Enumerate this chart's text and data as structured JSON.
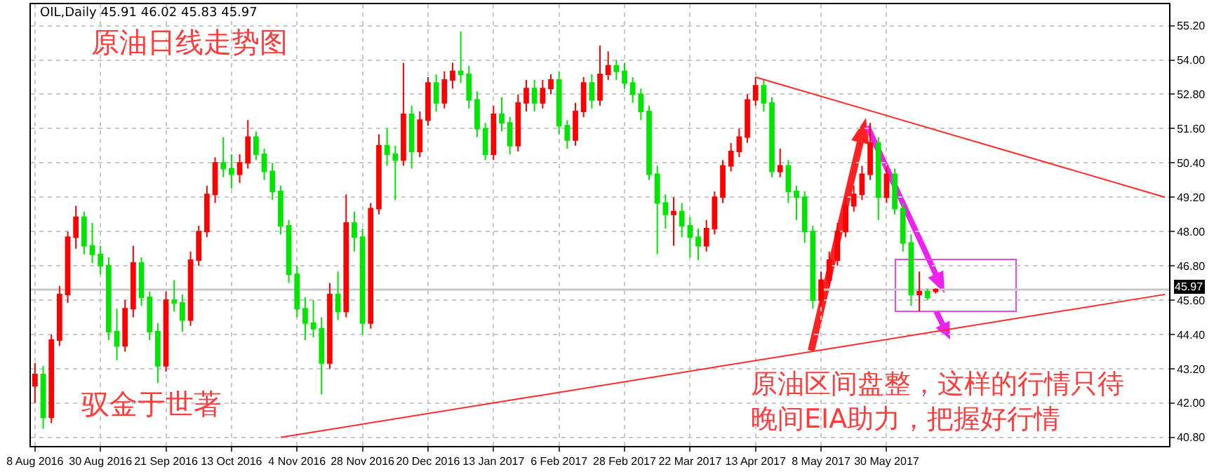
{
  "chart_data": {
    "type": "candlestick",
    "title": "OIL,Daily 45.91 46.02 45.83 45.97",
    "categories": [
      "8 Aug 2016",
      null,
      null,
      null,
      null,
      null,
      null,
      null,
      "30 Aug 2016",
      null,
      null,
      null,
      null,
      null,
      null,
      null,
      "21 Sep 2016",
      null,
      null,
      null,
      null,
      null,
      null,
      null,
      "13 Oct 2016",
      null,
      null,
      null,
      null,
      null,
      null,
      null,
      "4 Nov 2016",
      null,
      null,
      null,
      null,
      null,
      null,
      null,
      "28 Nov 2016",
      null,
      null,
      null,
      null,
      null,
      null,
      null,
      "20 Dec 2016",
      null,
      null,
      null,
      null,
      null,
      null,
      null,
      "13 Jan 2017",
      null,
      null,
      null,
      null,
      null,
      null,
      null,
      "6 Feb 2017",
      null,
      null,
      null,
      null,
      null,
      null,
      null,
      "28 Feb 2017",
      null,
      null,
      null,
      null,
      null,
      null,
      null,
      "22 Mar 2017",
      null,
      null,
      null,
      null,
      null,
      null,
      null,
      "13 Apr 2017",
      null,
      null,
      null,
      null,
      null,
      null,
      null,
      "8 May 2017",
      null,
      null,
      null,
      null,
      null,
      null,
      null,
      "30 May 2017",
      null,
      null,
      null,
      null,
      null,
      null,
      null,
      null,
      null,
      null,
      null,
      null,
      null,
      null,
      null,
      null,
      null,
      null,
      null,
      null,
      null,
      null,
      null,
      null,
      null,
      null,
      null,
      null,
      null,
      null,
      null,
      null,
      null,
      null
    ],
    "ohlc": [
      [
        42.6,
        43.4,
        42.0,
        43.0
      ],
      [
        43.0,
        43.3,
        41.1,
        41.5
      ],
      [
        41.5,
        44.4,
        41.3,
        44.2
      ],
      [
        44.2,
        46.1,
        44.0,
        45.8
      ],
      [
        45.8,
        48.0,
        45.5,
        47.8
      ],
      [
        47.8,
        48.9,
        47.4,
        48.5
      ],
      [
        48.5,
        48.7,
        47.2,
        47.5
      ],
      [
        47.5,
        48.3,
        46.9,
        47.2
      ],
      [
        47.2,
        47.5,
        46.5,
        46.8
      ],
      [
        46.8,
        47.1,
        44.2,
        44.5
      ],
      [
        44.5,
        45.3,
        43.5,
        44.0
      ],
      [
        44.0,
        45.6,
        43.8,
        45.3
      ],
      [
        45.3,
        47.5,
        45.0,
        46.9
      ],
      [
        46.9,
        47.1,
        45.4,
        45.7
      ],
      [
        45.7,
        45.9,
        44.2,
        44.5
      ],
      [
        44.5,
        44.8,
        42.7,
        43.3
      ],
      [
        43.3,
        45.9,
        43.1,
        45.6
      ],
      [
        45.6,
        46.3,
        45.2,
        45.5
      ],
      [
        45.5,
        45.8,
        44.5,
        44.9
      ],
      [
        44.9,
        47.3,
        44.7,
        47.0
      ],
      [
        47.0,
        48.2,
        46.8,
        48.0
      ],
      [
        48.0,
        49.6,
        47.8,
        49.3
      ],
      [
        49.3,
        50.6,
        49.0,
        50.4
      ],
      [
        50.4,
        51.3,
        49.9,
        50.2
      ],
      [
        50.2,
        50.7,
        49.5,
        50.0
      ],
      [
        50.0,
        50.7,
        49.7,
        50.4
      ],
      [
        50.4,
        51.9,
        50.2,
        51.3
      ],
      [
        51.3,
        51.5,
        50.5,
        50.7
      ],
      [
        50.7,
        50.9,
        49.8,
        50.1
      ],
      [
        50.1,
        50.4,
        49.1,
        49.4
      ],
      [
        49.4,
        49.6,
        47.9,
        48.2
      ],
      [
        48.2,
        48.4,
        46.2,
        46.5
      ],
      [
        46.5,
        46.8,
        45.0,
        45.3
      ],
      [
        45.3,
        45.7,
        44.2,
        44.8
      ],
      [
        44.8,
        45.6,
        44.3,
        44.6
      ],
      [
        44.6,
        45.0,
        42.3,
        43.4
      ],
      [
        43.4,
        46.2,
        43.2,
        45.8
      ],
      [
        45.8,
        46.6,
        44.9,
        45.2
      ],
      [
        45.2,
        49.3,
        45.0,
        48.3
      ],
      [
        48.3,
        48.7,
        47.3,
        47.8
      ],
      [
        47.8,
        48.1,
        44.4,
        44.8
      ],
      [
        44.8,
        49.0,
        44.6,
        48.8
      ],
      [
        48.8,
        51.4,
        48.6,
        51.0
      ],
      [
        51.0,
        51.6,
        50.3,
        50.7
      ],
      [
        50.7,
        51.0,
        49.1,
        50.5
      ],
      [
        50.5,
        53.9,
        50.3,
        52.1
      ],
      [
        52.1,
        52.4,
        50.2,
        50.8
      ],
      [
        50.8,
        52.2,
        50.6,
        51.9
      ],
      [
        51.9,
        53.4,
        51.7,
        53.2
      ],
      [
        53.2,
        53.5,
        52.2,
        52.5
      ],
      [
        52.5,
        53.6,
        52.3,
        53.3
      ],
      [
        53.3,
        53.9,
        53.0,
        53.6
      ],
      [
        53.6,
        55.0,
        53.2,
        53.5
      ],
      [
        53.5,
        53.8,
        52.3,
        52.6
      ],
      [
        52.6,
        52.9,
        51.3,
        51.6
      ],
      [
        51.6,
        51.8,
        50.5,
        50.7
      ],
      [
        50.7,
        52.4,
        50.5,
        52.1
      ],
      [
        52.1,
        52.7,
        51.5,
        51.8
      ],
      [
        51.8,
        52.0,
        50.7,
        51.0
      ],
      [
        51.0,
        52.8,
        50.8,
        52.5
      ],
      [
        52.5,
        53.3,
        52.2,
        53.0
      ],
      [
        53.0,
        53.3,
        52.2,
        52.5
      ],
      [
        52.5,
        53.3,
        52.3,
        53.0
      ],
      [
        53.0,
        53.5,
        52.8,
        53.3
      ],
      [
        53.3,
        53.6,
        51.4,
        51.7
      ],
      [
        51.7,
        51.9,
        50.9,
        51.2
      ],
      [
        51.2,
        52.5,
        51.0,
        52.2
      ],
      [
        52.2,
        53.4,
        52.0,
        53.2
      ],
      [
        53.2,
        53.5,
        52.3,
        52.6
      ],
      [
        52.6,
        54.5,
        52.4,
        53.5
      ],
      [
        53.5,
        54.3,
        53.3,
        53.8
      ],
      [
        53.8,
        54.0,
        53.3,
        53.6
      ],
      [
        53.6,
        53.9,
        53.0,
        53.2
      ],
      [
        53.2,
        53.4,
        52.5,
        52.8
      ],
      [
        52.8,
        53.0,
        51.9,
        52.2
      ],
      [
        52.2,
        52.4,
        49.8,
        50.0
      ],
      [
        50.0,
        50.3,
        47.2,
        49.0
      ],
      [
        49.0,
        49.3,
        48.1,
        48.6
      ],
      [
        48.6,
        49.2,
        47.5,
        48.7
      ],
      [
        48.7,
        49.0,
        47.8,
        48.2
      ],
      [
        48.2,
        48.5,
        47.1,
        47.8
      ],
      [
        47.8,
        48.1,
        47.0,
        47.5
      ],
      [
        47.5,
        48.4,
        47.3,
        48.1
      ],
      [
        48.1,
        49.4,
        47.9,
        49.2
      ],
      [
        49.2,
        50.5,
        49.0,
        50.3
      ],
      [
        50.3,
        51.1,
        50.1,
        50.8
      ],
      [
        50.8,
        51.6,
        50.6,
        51.3
      ],
      [
        51.3,
        52.8,
        51.1,
        52.6
      ],
      [
        52.6,
        53.4,
        52.4,
        53.1
      ],
      [
        53.1,
        53.3,
        52.2,
        52.5
      ],
      [
        52.5,
        52.7,
        49.9,
        50.1
      ],
      [
        50.1,
        50.9,
        49.9,
        50.3
      ],
      [
        50.3,
        50.5,
        49.0,
        49.4
      ],
      [
        49.4,
        49.6,
        48.4,
        49.2
      ],
      [
        49.2,
        49.4,
        47.6,
        48.0
      ],
      [
        48.0,
        48.2,
        45.3,
        45.6
      ],
      [
        45.6,
        46.6,
        45.4,
        46.3
      ],
      [
        46.3,
        47.3,
        46.1,
        47.0
      ],
      [
        47.0,
        48.3,
        46.8,
        48.0
      ],
      [
        48.0,
        49.2,
        47.8,
        48.9
      ],
      [
        48.9,
        49.6,
        48.7,
        49.3
      ],
      [
        49.3,
        50.3,
        49.1,
        50.0
      ],
      [
        50.0,
        51.8,
        49.8,
        51.1
      ],
      [
        51.1,
        51.3,
        48.4,
        49.2
      ],
      [
        49.2,
        50.3,
        49.0,
        50.0
      ],
      [
        50.0,
        50.2,
        48.6,
        48.8
      ],
      [
        48.8,
        49.0,
        47.3,
        47.6
      ],
      [
        47.6,
        47.9,
        45.4,
        45.8
      ],
      [
        45.8,
        46.6,
        45.2,
        45.9
      ],
      [
        45.9,
        46.0,
        45.6,
        45.7
      ],
      [
        45.91,
        46.02,
        45.83,
        45.97
      ],
      null,
      null,
      null,
      null,
      null,
      null,
      null,
      null,
      null,
      null,
      null,
      null,
      null,
      null,
      null,
      null,
      null,
      null,
      null,
      null,
      null,
      null,
      null,
      null,
      null,
      null,
      null,
      null
    ],
    "colors": [
      "#ff0000",
      "#00e600",
      "#ff0000",
      "#ff0000",
      "#ff0000",
      "#ff0000",
      "#00e600",
      "#00e600",
      "#00e600",
      "#00e600",
      "#00e600",
      "#ff0000",
      "#ff0000",
      "#00e600",
      "#00e600",
      "#00e600",
      "#ff0000",
      "#00e600",
      "#00e600",
      "#ff0000",
      "#ff0000",
      "#ff0000",
      "#ff0000",
      "#00e600",
      "#00e600",
      "#ff0000",
      "#ff0000",
      "#00e600",
      "#00e600",
      "#00e600",
      "#00e600",
      "#00e600",
      "#00e600",
      "#00e600",
      "#00e600",
      "#00e600",
      "#ff0000",
      "#00e600",
      "#ff0000",
      "#00e600",
      "#00e600",
      "#ff0000",
      "#ff0000",
      "#00e600",
      "#00e600",
      "#ff0000",
      "#00e600",
      "#ff0000",
      "#ff0000",
      "#00e600",
      "#ff0000",
      "#ff0000",
      "#00e600",
      "#00e600",
      "#00e600",
      "#00e600",
      "#ff0000",
      "#00e600",
      "#00e600",
      "#ff0000",
      "#ff0000",
      "#00e600",
      "#ff0000",
      "#ff0000",
      "#00e600",
      "#00e600",
      "#ff0000",
      "#ff0000",
      "#00e600",
      "#ff0000",
      "#ff0000",
      "#00e600",
      "#00e600",
      "#00e600",
      "#00e600",
      "#00e600",
      "#00e600",
      "#00e600",
      "#ff0000",
      "#00e600",
      "#00e600",
      "#00e600",
      "#ff0000",
      "#ff0000",
      "#ff0000",
      "#ff0000",
      "#ff0000",
      "#ff0000",
      "#ff0000",
      "#00e600",
      "#00e600",
      "#ff0000",
      "#00e600",
      "#00e600",
      "#00e600",
      "#00e600",
      "#ff0000",
      "#ff0000",
      "#ff0000",
      "#ff0000",
      "#ff0000",
      "#ff0000",
      "#ff0000",
      "#00e600",
      "#ff0000",
      "#00e600",
      "#00e600",
      "#00e600",
      "#ff0000",
      "#00e600",
      "#ff0000",
      null,
      null,
      null,
      null,
      null,
      null,
      null,
      null,
      null,
      null,
      null,
      null,
      null,
      null,
      null,
      null,
      null,
      null,
      null,
      null,
      null,
      null,
      null,
      null,
      null,
      null,
      null,
      null
    ],
    "series": [
      {
        "type": "line",
        "color": "#ff2a2a",
        "values": [
          null,
          null,
          null,
          null,
          null,
          null,
          null,
          null,
          null,
          null,
          null,
          null,
          null,
          null,
          null,
          null,
          null,
          null,
          null,
          null,
          null,
          null,
          null,
          null,
          null,
          null,
          null,
          null,
          null,
          null,
          40.8,
          null,
          null,
          null,
          null,
          null,
          null,
          null,
          null,
          null,
          null,
          null,
          null,
          null,
          null,
          null,
          null,
          null,
          null,
          null,
          null,
          null,
          null,
          null,
          null,
          null,
          null,
          null,
          null,
          null,
          null,
          null,
          null,
          null,
          null,
          null,
          null,
          null,
          null,
          null,
          null,
          null,
          null,
          null,
          null,
          null,
          null,
          null,
          null,
          null,
          null,
          null,
          null,
          null,
          null,
          null,
          null,
          null,
          null,
          null,
          null,
          null,
          null,
          null,
          null,
          null,
          null,
          null,
          null,
          null,
          null,
          null,
          null,
          null,
          null,
          null,
          null,
          null,
          null,
          null,
          null,
          null,
          null,
          null,
          null,
          null,
          null,
          null,
          null,
          null,
          null,
          null,
          null,
          null,
          null,
          null,
          null,
          null,
          null,
          null,
          null,
          null,
          null,
          null,
          null,
          null,
          null,
          null,
          45.8
        ]
      },
      {
        "type": "line",
        "color": "#ff2a2a",
        "values": [
          null,
          null,
          null,
          null,
          null,
          null,
          null,
          null,
          null,
          null,
          null,
          null,
          null,
          null,
          null,
          null,
          null,
          null,
          null,
          null,
          null,
          null,
          null,
          null,
          null,
          null,
          null,
          null,
          null,
          null,
          null,
          null,
          null,
          null,
          null,
          null,
          null,
          null,
          null,
          null,
          null,
          null,
          null,
          null,
          null,
          null,
          null,
          null,
          null,
          null,
          null,
          null,
          null,
          null,
          null,
          null,
          null,
          null,
          null,
          null,
          null,
          null,
          null,
          null,
          null,
          null,
          null,
          null,
          null,
          null,
          null,
          null,
          null,
          null,
          null,
          null,
          null,
          null,
          null,
          null,
          null,
          null,
          null,
          null,
          null,
          null,
          null,
          null,
          53.4,
          null,
          null,
          null,
          null,
          null,
          null,
          null,
          null,
          null,
          null,
          null,
          null,
          null,
          null,
          null,
          null,
          null,
          null,
          null,
          null,
          null,
          null,
          null,
          null,
          null,
          null,
          null,
          null,
          null,
          null,
          null,
          null,
          null,
          null,
          null,
          null,
          null,
          null,
          null,
          null,
          null,
          null,
          null,
          null,
          null,
          null,
          null,
          null,
          null,
          49.2
        ]
      }
    ],
    "ylim": [
      40.5,
      55.95
    ],
    "yticks": [
      {
        "value": 40.8,
        "label": "40.80"
      },
      {
        "value": 42.0,
        "label": "42.00"
      },
      {
        "value": 43.2,
        "label": "43.20"
      },
      {
        "value": 44.4,
        "label": "44.40"
      },
      {
        "value": 45.6,
        "label": "45.60"
      },
      {
        "value": 46.8,
        "label": "46.80"
      },
      {
        "value": 48.0,
        "label": "48.00"
      },
      {
        "value": 49.2,
        "label": "49.20"
      },
      {
        "value": 50.4,
        "label": "50.40"
      },
      {
        "value": 51.6,
        "label": "51.60"
      },
      {
        "value": 52.8,
        "label": "52.80"
      },
      {
        "value": 54.0,
        "label": "54.00"
      },
      {
        "value": 55.2,
        "label": "55.20"
      }
    ],
    "ref_lines": [
      {
        "axis": "y",
        "value": 45.97,
        "label": "45.97",
        "color": "#c8c8c8"
      }
    ],
    "annotations": [
      "原油日线走势图",
      "驭金于世著",
      "原油区间盘整，这样的行情只待",
      "晚间EIA助力，把握好行情"
    ],
    "grid": true
  }
}
